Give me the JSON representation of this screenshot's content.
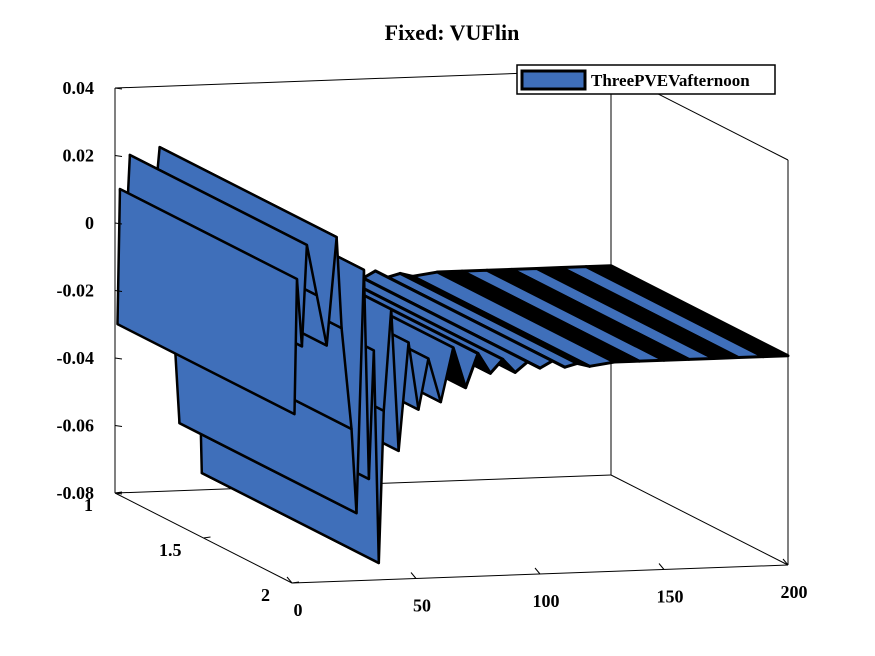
{
  "chart_data": {
    "type": "area",
    "title": "Fixed: VUFlin",
    "legend": {
      "entries": [
        "ThreePVEVafternoon"
      ],
      "placement": "top-right"
    },
    "series": [
      {
        "name": "ThreePVEVafternoon",
        "color": "#3f6fba",
        "edge_color": "#000000",
        "x": [
          1,
          2,
          4,
          6,
          10,
          14,
          18,
          20,
          24,
          26,
          29,
          31,
          33,
          35,
          37,
          40,
          43,
          47,
          51,
          55,
          60,
          65,
          70,
          75,
          80,
          85,
          90,
          95,
          100,
          105,
          110,
          115,
          120,
          130,
          140,
          150,
          160,
          170,
          180,
          190,
          200
        ],
        "y": [
          -0.03,
          0.01,
          -0.01,
          0.02,
          0.005,
          -0.01,
          0.022,
          -0.005,
          -0.035,
          -0.06,
          0.012,
          -0.05,
          -0.012,
          -0.075,
          -0.03,
          0.0,
          -0.042,
          -0.01,
          -0.03,
          -0.015,
          -0.028,
          -0.012,
          -0.024,
          -0.014,
          -0.02,
          -0.016,
          -0.02,
          -0.017,
          -0.019,
          -0.017,
          -0.019,
          -0.018,
          -0.019,
          -0.018,
          -0.018,
          -0.018,
          -0.018,
          -0.018,
          -0.018,
          -0.018,
          -0.018
        ]
      }
    ],
    "x_axis": {
      "ticks": [
        "0",
        "50",
        "100",
        "150",
        "200"
      ],
      "range": [
        0,
        200
      ]
    },
    "y_axis": {
      "ticks": [
        "1",
        "1.5",
        "2"
      ],
      "range": [
        1,
        2
      ]
    },
    "z_axis": {
      "ticks": [
        "0.04",
        "0.02",
        "0",
        "-0.02",
        "-0.04",
        "-0.06",
        "-0.08"
      ],
      "range": [
        -0.08,
        0.04
      ]
    },
    "grid": false
  }
}
